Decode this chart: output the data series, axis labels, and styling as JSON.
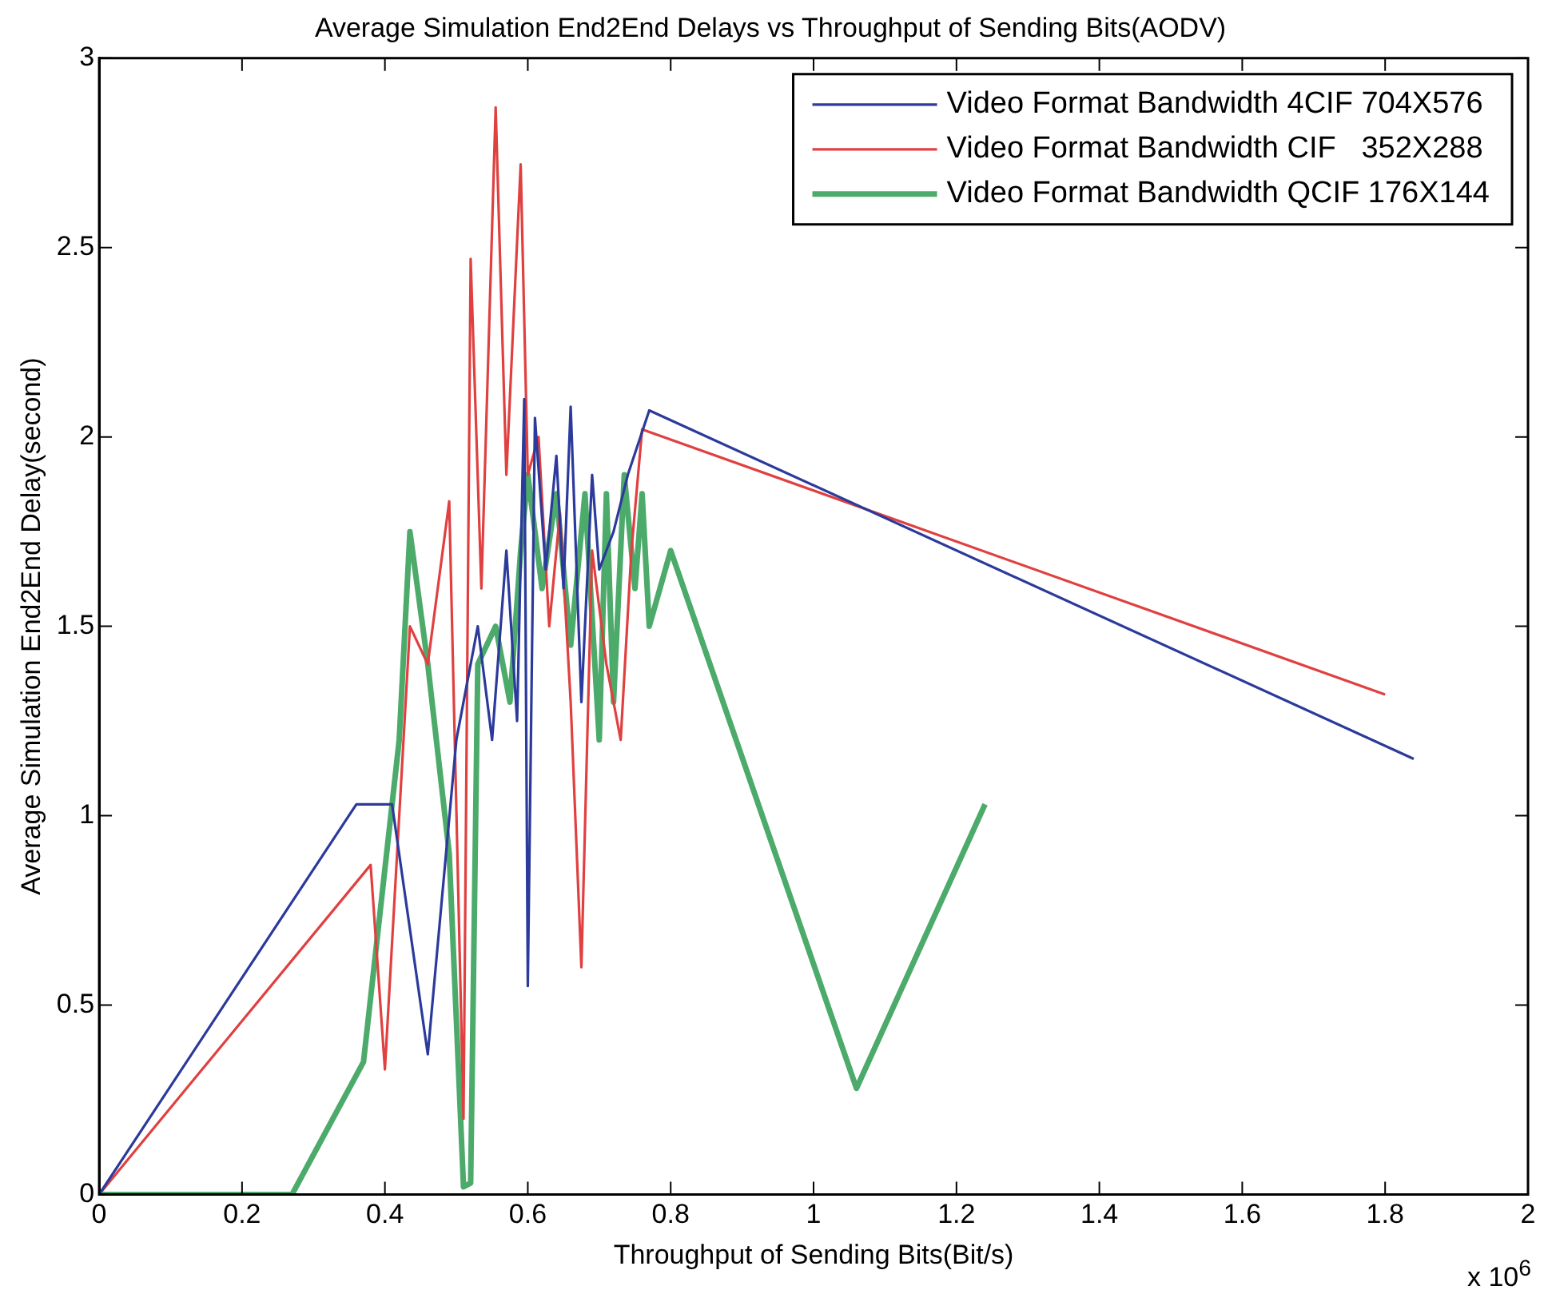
{
  "chart_data": {
    "type": "line",
    "title": "Average Simulation End2End Delays vs Throughput of Sending Bits(AODV)",
    "xlabel": "Throughput of Sending Bits(Bit/s)",
    "ylabel": "Average Simulation End2End Delay(second)",
    "annotations": [
      "x 10$^{6}$"
    ],
    "xlim": [
      0,
      2
    ],
    "xticks": [
      0,
      0.2,
      0.4,
      0.6,
      0.8,
      1,
      1.2,
      1.4,
      1.6,
      1.8,
      2
    ],
    "ylim": [
      0,
      3
    ],
    "yticks": [
      0,
      0.5,
      1,
      1.5,
      2,
      2.5,
      3
    ],
    "grid": false,
    "legend": "top right",
    "marker": "none",
    "line_style": "solid",
    "series": [
      {
        "name": "Video Format Bandwidth 4CIF 704X576",
        "color": "#2b3a9b",
        "x": [
          0,
          0.36,
          0.41,
          0.46,
          0.5,
          0.53,
          0.55,
          0.57,
          0.585,
          0.595,
          0.6,
          0.61,
          0.625,
          0.64,
          0.65,
          0.66,
          0.675,
          0.69,
          0.7,
          0.72,
          0.74,
          0.77,
          1.84
        ],
        "values": [
          0,
          1.03,
          1.03,
          0.37,
          1.2,
          1.5,
          1.2,
          1.7,
          1.25,
          2.1,
          0.55,
          2.05,
          1.65,
          1.95,
          1.6,
          2.08,
          1.3,
          1.9,
          1.65,
          1.75,
          1.9,
          2.07,
          1.15
        ]
      },
      {
        "name": "Video Format Bandwidth CIF   352X288",
        "color": "#e04040",
        "x": [
          0,
          0.38,
          0.4,
          0.435,
          0.46,
          0.49,
          0.51,
          0.52,
          0.535,
          0.555,
          0.57,
          0.59,
          0.6,
          0.615,
          0.63,
          0.645,
          0.66,
          0.675,
          0.69,
          0.71,
          0.73,
          0.745,
          0.76,
          1.8
        ],
        "values": [
          0,
          0.87,
          0.33,
          1.5,
          1.4,
          1.83,
          0.2,
          2.47,
          1.6,
          2.87,
          1.9,
          2.72,
          1.9,
          2,
          1.5,
          1.8,
          1.3,
          0.6,
          1.7,
          1.4,
          1.2,
          1.7,
          2.02,
          1.32
        ]
      },
      {
        "name": "Video Format Bandwidth QCIF 176X144",
        "color": "#4caa6a",
        "x": [
          0,
          0.27,
          0.37,
          0.42,
          0.435,
          0.46,
          0.49,
          0.51,
          0.52,
          0.53,
          0.555,
          0.575,
          0.59,
          0.6,
          0.62,
          0.64,
          0.66,
          0.68,
          0.7,
          0.71,
          0.72,
          0.735,
          0.75,
          0.76,
          0.77,
          0.8,
          1.06,
          1.24
        ],
        "values": [
          0,
          0,
          0.35,
          1.2,
          1.75,
          1.4,
          0.9,
          0.02,
          0.03,
          1.4,
          1.5,
          1.3,
          1.7,
          1.9,
          1.6,
          1.85,
          1.45,
          1.85,
          1.2,
          1.85,
          1.3,
          1.9,
          1.6,
          1.85,
          1.5,
          1.7,
          0.28,
          1.03
        ]
      }
    ]
  }
}
